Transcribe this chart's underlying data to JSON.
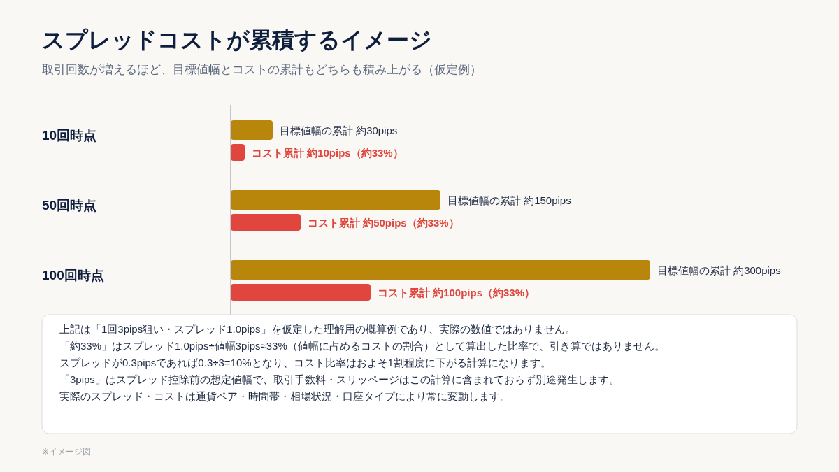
{
  "chart_data": {
    "type": "bar",
    "orientation": "horizontal",
    "title": "スプレッドコストが累積するイメージ",
    "subtitle": "取引回数が増えるほど、目標値幅とコストの累計もどちらも積み上がる（仮定例）",
    "categories": [
      "10回時点",
      "50回時点",
      "100回時点"
    ],
    "series": [
      {
        "color": "#b8860b",
        "values": [
          30,
          150,
          300
        ],
        "value_labels": [
          "目標値幅の累計 約30pips",
          "目標値幅の累計 約150pips",
          "目標値幅の累計 約300pips"
        ]
      },
      {
        "color": "#e0463d",
        "values": [
          10,
          50,
          100
        ],
        "value_labels": [
          "コスト累計 約10pips（約33%）",
          "コスト累計 約50pips（約33%）",
          "コスト累計 約100pips（約33%）"
        ]
      }
    ],
    "annotations": [
      "上記は「1回3pips狙い・スプレッド1.0pips」を仮定した理解用の概算例であり、実際の数値ではありません。",
      "「約33%」はスプレッド1.0pips÷値幅3pips≈33%（値幅に占めるコストの割合）として算出した比率で、引き算ではありません。",
      "スプレッドが0.3pipsであれば0.3÷3=10%となり、コスト比率はおよそ1割程度に下がる計算になります。",
      "「3pips」はスプレッド控除前の想定値幅で、取引手数料・スリッページはこの計算に含まれておらず別途発生します。",
      "実際のスプレッド・コストは通貨ペア・時間帯・相場状況・口座タイプにより常に変動します。",
      "※イメージ図"
    ]
  }
}
